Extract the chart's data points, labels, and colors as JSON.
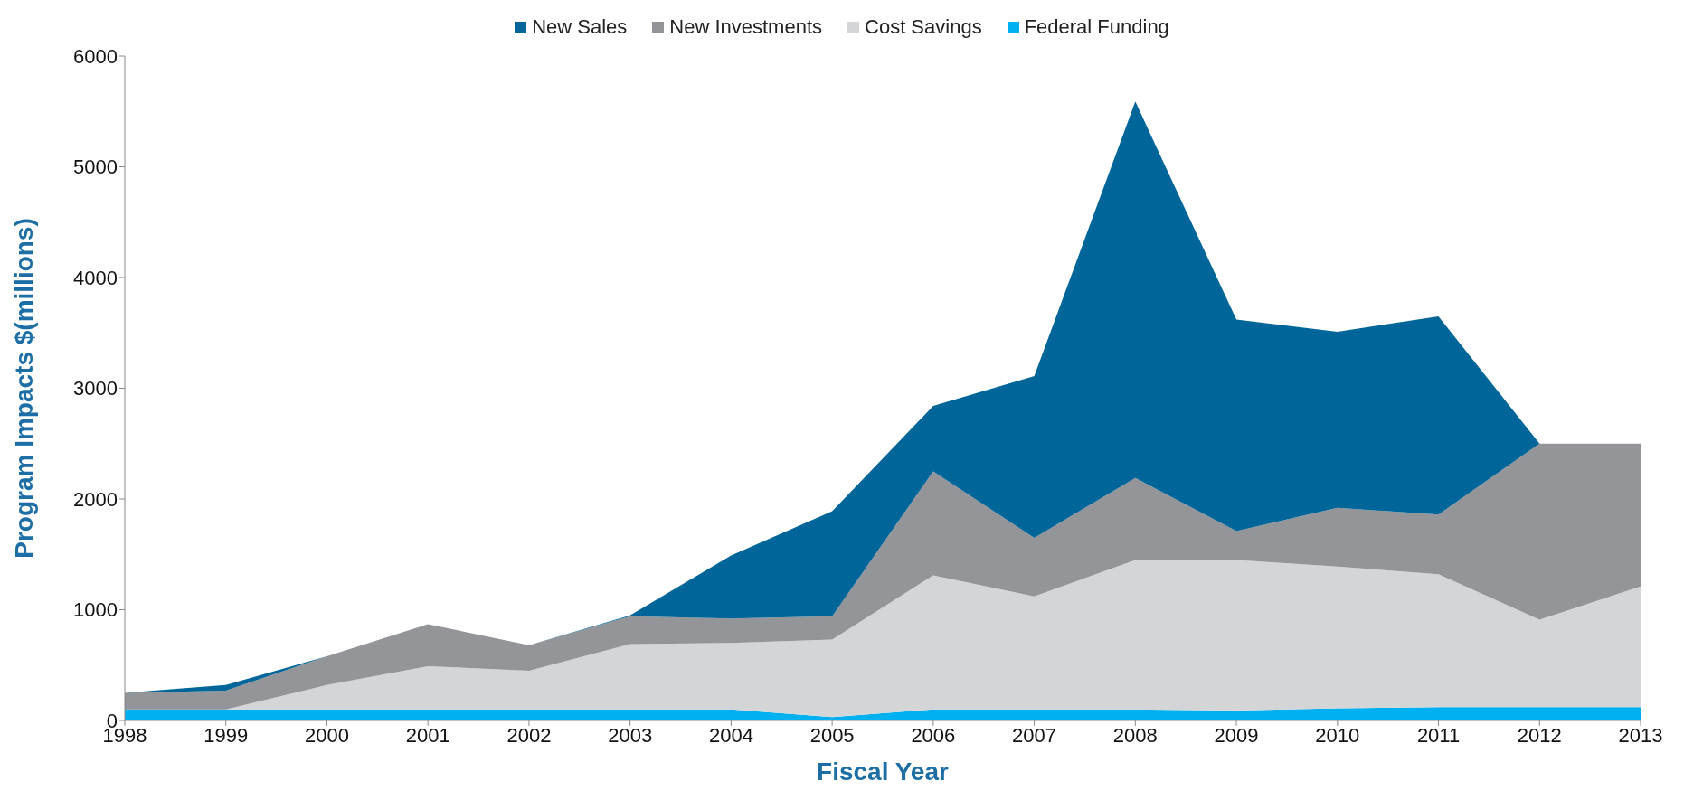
{
  "chart_data": {
    "type": "area",
    "stacked": true,
    "xlabel": "Fiscal Year",
    "ylabel": "Program Impacts $(millions)",
    "categories": [
      "1998",
      "1999",
      "2000",
      "2001",
      "2002",
      "2003",
      "2004",
      "2005",
      "2006",
      "2007",
      "2008",
      "2009",
      "2010",
      "2011",
      "2012",
      "2013"
    ],
    "series": [
      {
        "name": "Federal Funding",
        "color": "#00b0f0",
        "values": [
          100,
          100,
          100,
          100,
          100,
          100,
          100,
          30,
          100,
          100,
          100,
          90,
          110,
          120,
          120,
          120
        ]
      },
      {
        "name": "Cost Savings",
        "color": "#d4d5d7",
        "values": [
          0,
          0,
          220,
          390,
          350,
          590,
          600,
          700,
          1210,
          1020,
          1350,
          1360,
          1280,
          1200,
          790,
          1090
        ]
      },
      {
        "name": "New Investments",
        "color": "#939598",
        "values": [
          150,
          170,
          260,
          380,
          230,
          250,
          220,
          210,
          940,
          530,
          740,
          260,
          530,
          540,
          1590,
          1290
        ]
      },
      {
        "name": "New Sales",
        "color": "#006699",
        "values": [
          0,
          50,
          0,
          0,
          0,
          10,
          570,
          950,
          590,
          1460,
          3400,
          1910,
          1590,
          1790,
          0,
          0
        ]
      }
    ],
    "ylim": [
      0,
      6000
    ],
    "yticks": [
      0,
      1000,
      2000,
      3000,
      4000,
      5000,
      6000
    ],
    "grid": false,
    "legend": "top"
  }
}
